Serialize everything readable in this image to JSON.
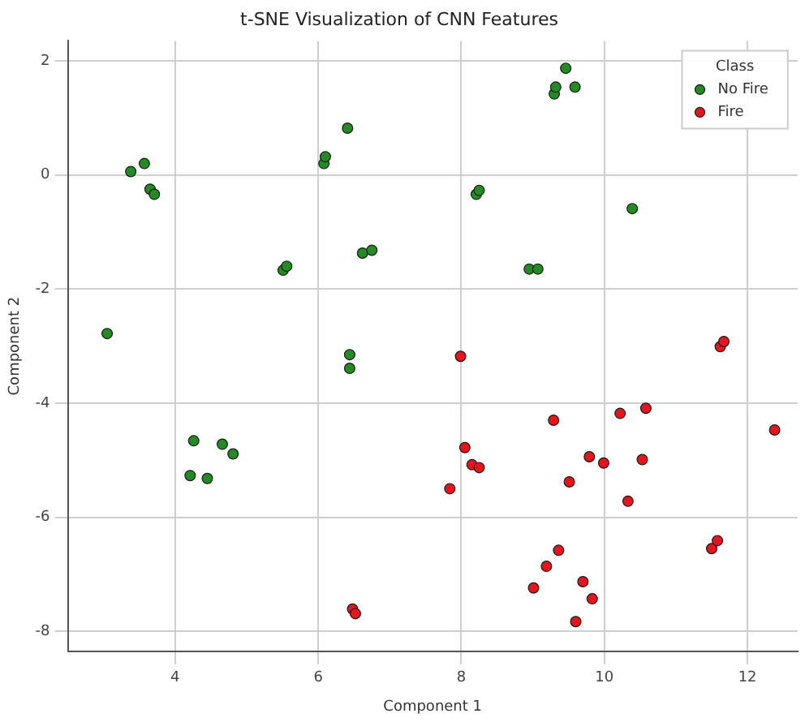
{
  "chart_data": {
    "type": "scatter",
    "title": "t-SNE Visualization of CNN Features",
    "xlabel": "Component 1",
    "ylabel": "Component 2",
    "legend_title": "Class",
    "legend": "top right",
    "grid": true,
    "marker": "circle",
    "xlim": [
      2.5,
      12.7
    ],
    "ylim": [
      -8.35,
      2.35
    ],
    "xticks": [
      4,
      6,
      8,
      10,
      12
    ],
    "yticks": [
      -8,
      -6,
      -4,
      -2,
      0,
      2
    ],
    "series": [
      {
        "name": "No Fire",
        "color": "#228b22",
        "x": [
          3.05,
          3.38,
          3.57,
          3.65,
          3.71,
          5.51,
          5.56,
          6.08,
          6.1,
          6.41,
          6.44,
          6.44,
          6.62,
          6.75,
          8.21,
          8.25,
          8.95,
          9.07,
          9.3,
          9.32,
          9.46,
          9.59,
          10.39,
          4.26,
          4.66,
          4.81,
          4.21,
          4.45
        ],
        "values": [
          -2.78,
          0.06,
          0.2,
          -0.25,
          -0.34,
          -1.67,
          -1.6,
          0.2,
          0.32,
          0.82,
          -3.15,
          -3.39,
          -1.37,
          -1.32,
          -0.34,
          -0.27,
          -1.65,
          -1.65,
          1.42,
          1.54,
          1.87,
          1.54,
          -0.59,
          -4.66,
          -4.72,
          -4.89,
          -5.27,
          -5.32
        ]
      },
      {
        "name": "Fire",
        "color": "#e8141b",
        "x": [
          7.99,
          11.62,
          11.67,
          6.48,
          6.52,
          9.29,
          10.22,
          10.58,
          12.38,
          8.05,
          8.15,
          8.25,
          7.84,
          9.79,
          9.99,
          10.53,
          9.51,
          10.33,
          11.5,
          11.58,
          9.36,
          9.19,
          9.01,
          9.7,
          9.83,
          9.6
        ],
        "values": [
          -3.18,
          -3.01,
          -2.92,
          -7.61,
          -7.69,
          -4.3,
          -4.18,
          -4.09,
          -4.47,
          -4.78,
          -5.08,
          -5.13,
          -5.5,
          -4.94,
          -5.05,
          -4.99,
          -5.38,
          -5.72,
          -6.55,
          -6.41,
          -6.58,
          -6.86,
          -7.24,
          -7.13,
          -7.43,
          -7.83
        ]
      }
    ]
  }
}
